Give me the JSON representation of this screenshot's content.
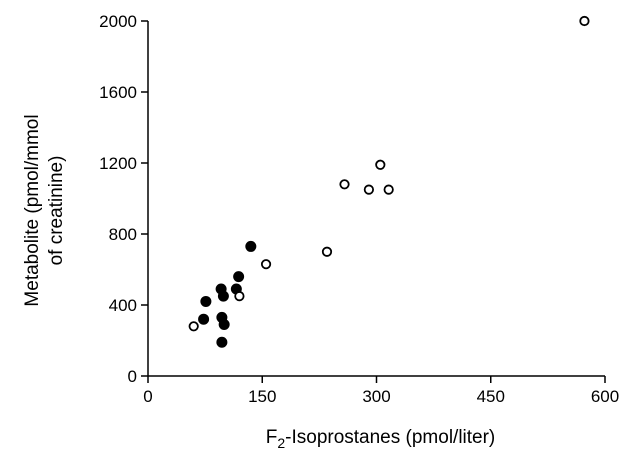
{
  "chart_data": {
    "type": "scatter",
    "xlabel_prefix": "F",
    "xlabel_sub": "2",
    "xlabel_suffix": "-Isoprostanes (pmol/liter)",
    "ylabel_line1": "Metabolite (pmol/mmol",
    "ylabel_line2": "of creatinine)",
    "xlim": [
      0,
      600
    ],
    "ylim": [
      0,
      2000
    ],
    "xticks": [
      0,
      150,
      300,
      450,
      600
    ],
    "yticks": [
      0,
      400,
      800,
      1200,
      1600,
      2000
    ],
    "grid": false,
    "series": [
      {
        "marker": "filled",
        "color": "#000000",
        "points": [
          {
            "x": 73,
            "y": 320
          },
          {
            "x": 76,
            "y": 420
          },
          {
            "x": 96,
            "y": 490
          },
          {
            "x": 99,
            "y": 450
          },
          {
            "x": 97,
            "y": 330
          },
          {
            "x": 100,
            "y": 290
          },
          {
            "x": 97,
            "y": 190
          },
          {
            "x": 116,
            "y": 490
          },
          {
            "x": 119,
            "y": 560
          },
          {
            "x": 135,
            "y": 730
          }
        ]
      },
      {
        "marker": "open",
        "color": "#000000",
        "points": [
          {
            "x": 60,
            "y": 280
          },
          {
            "x": 120,
            "y": 450
          },
          {
            "x": 155,
            "y": 630
          },
          {
            "x": 235,
            "y": 700
          },
          {
            "x": 258,
            "y": 1080
          },
          {
            "x": 290,
            "y": 1050
          },
          {
            "x": 305,
            "y": 1190
          },
          {
            "x": 316,
            "y": 1050
          },
          {
            "x": 573,
            "y": 2000
          }
        ]
      }
    ]
  }
}
